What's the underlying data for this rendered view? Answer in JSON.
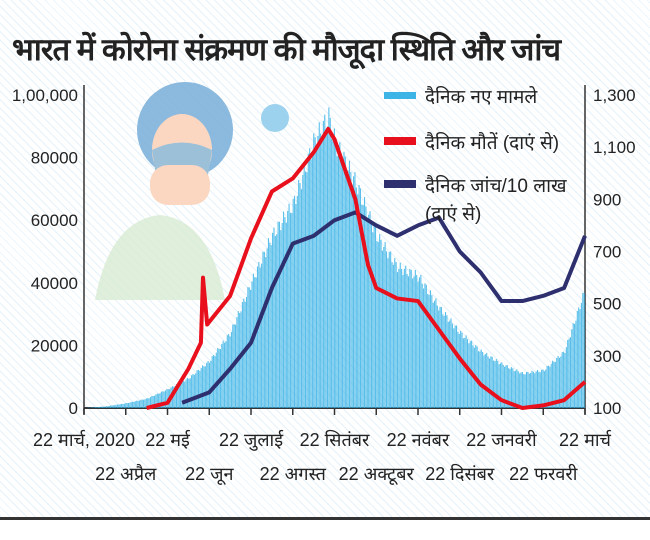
{
  "chart_data": {
    "type": "bar",
    "title": "भारत में कोरोना संक्रमण की मौजूदा स्थिति और जांच",
    "colors": {
      "cases": "#3cb4e6",
      "deaths": "#e8101c",
      "tests": "#2e2f6e"
    },
    "legend": [
      "दैनिक नए मामले",
      "दैनिक मौतें (दाएं से)",
      "दैनिक जांच/10 लाख",
      "(दाएं से)"
    ],
    "legend_position": "top-right",
    "left_ticks": [
      "0",
      "20000",
      "40000",
      "60000",
      "80000",
      "1,00,000"
    ],
    "left_tick_values": [
      0,
      20000,
      40000,
      60000,
      80000,
      100000
    ],
    "right_ticks": [
      "100",
      "300",
      "500",
      "700",
      "900",
      "1,100",
      "1,300"
    ],
    "right_tick_values": [
      100,
      300,
      500,
      700,
      900,
      1100,
      1300
    ],
    "ylim_left": [
      0,
      100000
    ],
    "ylim_right": [
      100,
      1300
    ],
    "x_labels_top": [
      "22 मार्च, 2020",
      "22 मई",
      "22 जुलाई",
      "22 सितंबर",
      "22 नवंबर",
      "22 जनवरी",
      "22 मार्च"
    ],
    "x_labels_bottom": [
      "22 अप्रैल",
      "22 जून",
      "22 अगस्त",
      "22 अक्टूबर",
      "22 दिसंबर",
      "22 फरवरी"
    ],
    "x_unit": "months since 22 March 2020",
    "cases": {
      "x": [
        0,
        0.5,
        1,
        1.5,
        2,
        2.5,
        3,
        3.5,
        4,
        4.5,
        5,
        5.5,
        5.85,
        6,
        6.5,
        7,
        7.5,
        8,
        8.5,
        9,
        9.5,
        10,
        10.5,
        11,
        11.5,
        12
      ],
      "y": [
        0,
        500,
        1500,
        3000,
        6000,
        9500,
        15000,
        24000,
        40000,
        55000,
        65000,
        85000,
        93000,
        85000,
        72000,
        55000,
        45000,
        42000,
        32000,
        24000,
        18000,
        14000,
        11000,
        12000,
        18000,
        38000
      ]
    },
    "deaths": {
      "x": [
        1.5,
        2,
        2.5,
        2.8,
        2.85,
        2.95,
        3.5,
        4,
        4.5,
        5,
        5.5,
        5.85,
        6,
        6.5,
        6.8,
        7,
        7.5,
        8,
        8.5,
        9,
        9.5,
        10,
        10.5,
        11,
        11.5,
        12
      ],
      "y": [
        100,
        120,
        250,
        350,
        600,
        420,
        530,
        750,
        930,
        980,
        1080,
        1170,
        1130,
        900,
        650,
        560,
        520,
        510,
        400,
        290,
        190,
        130,
        100,
        110,
        130,
        200
      ]
    },
    "tests": {
      "x": [
        2.35,
        3,
        3.5,
        4,
        4.5,
        5,
        5.5,
        6,
        6.5,
        7,
        7.5,
        8,
        8.5,
        9,
        9.5,
        10,
        10.5,
        11,
        11.5,
        12
      ],
      "y": [
        120,
        160,
        250,
        350,
        560,
        730,
        760,
        820,
        850,
        800,
        760,
        800,
        830,
        700,
        620,
        510,
        510,
        530,
        560,
        760
      ]
    }
  }
}
